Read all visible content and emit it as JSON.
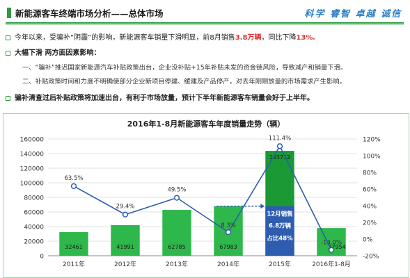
{
  "header": {
    "title": "新能源客车终端市场分析——总体市场",
    "slogan": "科学 睿智 卓越 诚信"
  },
  "bullets": {
    "b1_pre": "今年以来，受骗补“阴霾”的影响，新能源客车销量下滑明显，前8月销售",
    "b1_hl1": "3.8万辆",
    "b1_mid": "，同比下降",
    "b1_hl2": "13%",
    "b1_post": "。",
    "b2": "大幅下滑 两方面因素影响：",
    "sub1": "一、“骗补”推迟国家新能源汽车补贴政策出台，企业没补贴+15年补贴未发的资金链风险，导致减产和销量下滑。",
    "sub2": "二、补贴政策时间和力度不明确使部分企业新项目停建、缓建及产品停产，对去年刚刚放量的市场需求产生影响。",
    "b3": "骗补清查过后补贴政策将加速出台，有利于市场放量，预计下半年新能源客车销量会好于上半年。"
  },
  "colors": {
    "bar": "#2eb84b",
    "bar_highlight": "#1a9934",
    "line": "#2e5db0",
    "accent": "#2e9a3e",
    "callout": "#2e5db0"
  },
  "chart_data": {
    "type": "bar",
    "title": "2016年1-8月新能源客车年度销量走势（辆）",
    "categories": [
      "2011年",
      "2012年",
      "2013年",
      "2014年",
      "2015年",
      "2016年1-8月"
    ],
    "series": [
      {
        "values": [
          32461,
          41991,
          62785,
          67983,
          143712,
          37954
        ],
        "axis": "left"
      },
      {
        "type": "line",
        "values": [
          63.5,
          29.4,
          49.5,
          8.3,
          111.4,
          -13.0
        ],
        "axis": "right"
      }
    ],
    "bar_labels": [
      "32461",
      "41991",
      "62785",
      "67983",
      "143712",
      "37954"
    ],
    "line_labels": [
      "63.5%",
      "29.4%",
      "49.5%",
      "8.3%",
      "111.4%",
      "-13.0%"
    ],
    "ylim_left": [
      0,
      160000
    ],
    "yticks_left": [
      "0",
      "20000",
      "40000",
      "60000",
      "80000",
      "100000",
      "120000",
      "140000",
      "160000"
    ],
    "ylim_right": [
      -20,
      120
    ],
    "yticks_right": [
      "-20%",
      "0%",
      "20%",
      "40%",
      "60%",
      "80%",
      "100%",
      "120%"
    ],
    "callout": {
      "line1": "12月销售",
      "line2": "6.8万辆",
      "line3": "占比48%",
      "value": 68000
    }
  }
}
